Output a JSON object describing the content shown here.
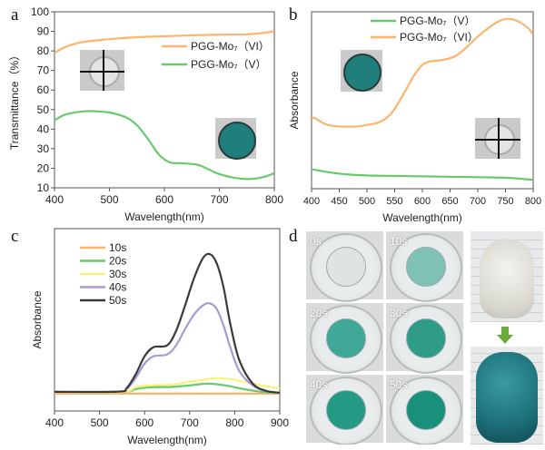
{
  "panels": {
    "a": "a",
    "b": "b",
    "c": "c",
    "d": "d"
  },
  "chart_data": [
    {
      "id": "a",
      "type": "line",
      "xlabel": "Wavelength(nm)",
      "ylabel": "Transmittance（%）",
      "xlim": [
        400,
        800
      ],
      "ylim": [
        10,
        100
      ],
      "xticks": [
        400,
        500,
        600,
        700,
        800
      ],
      "yticks": [
        10,
        20,
        30,
        40,
        50,
        60,
        70,
        80,
        90,
        100
      ],
      "legend": "top-right",
      "series": [
        {
          "name": "PGG-Mo₇（VI）",
          "color": "#fdb46e",
          "x": [
            400,
            420,
            450,
            500,
            550,
            600,
            650,
            700,
            750,
            780,
            800
          ],
          "y": [
            79,
            82,
            84.5,
            86,
            87,
            87.5,
            88,
            88.3,
            88.5,
            89.2,
            90
          ]
        },
        {
          "name": "PGG-Mo₇（V）",
          "color": "#69c96b",
          "x": [
            400,
            420,
            450,
            470,
            500,
            530,
            550,
            570,
            590,
            610,
            630,
            660,
            680,
            700,
            730,
            755,
            780,
            800
          ],
          "y": [
            44.5,
            47.5,
            49,
            49.2,
            48.5,
            46,
            42,
            35,
            27,
            23,
            22.6,
            21.8,
            19.5,
            17,
            15,
            14.5,
            15.5,
            17.5
          ]
        }
      ]
    },
    {
      "id": "b",
      "type": "line",
      "xlabel": "Wavelength(nm)",
      "ylabel": "Absorbance",
      "xlim": [
        400,
        800
      ],
      "ylim": [
        0,
        1
      ],
      "xticks": [
        400,
        450,
        500,
        550,
        600,
        650,
        700,
        750,
        800
      ],
      "legend": "top-center",
      "series": [
        {
          "name": "PGG-Mo₇（V）",
          "color": "#69c96b",
          "x": [
            400,
            450,
            500,
            600,
            700,
            750,
            800
          ],
          "y": [
            0.11,
            0.085,
            0.075,
            0.07,
            0.065,
            0.062,
            0.05
          ]
        },
        {
          "name": "PGG-Mo₇（VI）",
          "color": "#fdb46e",
          "x": [
            400,
            405,
            430,
            470,
            500,
            525,
            545,
            565,
            585,
            600,
            615,
            640,
            660,
            680,
            700,
            720,
            740,
            755,
            770,
            790,
            800
          ],
          "y": [
            0.39,
            0.4,
            0.36,
            0.35,
            0.36,
            0.38,
            0.43,
            0.53,
            0.64,
            0.7,
            0.72,
            0.73,
            0.75,
            0.8,
            0.86,
            0.91,
            0.95,
            0.96,
            0.95,
            0.91,
            0.87
          ]
        }
      ]
    },
    {
      "id": "c",
      "type": "line",
      "xlabel": "Wavelength(nm)",
      "ylabel": "Absorbance",
      "xlim": [
        400,
        900
      ],
      "ylim": [
        0,
        1
      ],
      "xticks": [
        400,
        500,
        600,
        700,
        800,
        900
      ],
      "legend": "top-left",
      "series": [
        {
          "name": "10s",
          "color": "#fdb46e",
          "x": [
            400,
            900
          ],
          "y": [
            0.095,
            0.095
          ]
        },
        {
          "name": "20s",
          "color": "#69c96b",
          "x": [
            400,
            550,
            580,
            610,
            660,
            700,
            740,
            780,
            820,
            860,
            900
          ],
          "y": [
            0.105,
            0.105,
            0.12,
            0.13,
            0.132,
            0.14,
            0.15,
            0.14,
            0.12,
            0.105,
            0.1
          ]
        },
        {
          "name": "30s",
          "color": "#f7f37a",
          "x": [
            400,
            550,
            580,
            610,
            660,
            700,
            740,
            760,
            790,
            830,
            870,
            900
          ],
          "y": [
            0.105,
            0.105,
            0.13,
            0.14,
            0.145,
            0.16,
            0.175,
            0.18,
            0.175,
            0.155,
            0.135,
            0.125
          ]
        },
        {
          "name": "40s",
          "color": "#a899d2",
          "x": [
            400,
            540,
            560,
            580,
            600,
            620,
            650,
            670,
            690,
            710,
            730,
            745,
            760,
            775,
            790,
            810,
            840,
            870,
            900
          ],
          "y": [
            0.105,
            0.106,
            0.12,
            0.18,
            0.26,
            0.3,
            0.31,
            0.36,
            0.45,
            0.53,
            0.58,
            0.59,
            0.56,
            0.47,
            0.35,
            0.22,
            0.14,
            0.11,
            0.1
          ]
        },
        {
          "name": "50s",
          "color": "#3a3a3a",
          "x": [
            400,
            540,
            560,
            580,
            600,
            620,
            650,
            670,
            690,
            710,
            730,
            745,
            760,
            775,
            790,
            810,
            840,
            870,
            900
          ],
          "y": [
            0.105,
            0.106,
            0.125,
            0.2,
            0.3,
            0.35,
            0.36,
            0.44,
            0.58,
            0.73,
            0.84,
            0.86,
            0.81,
            0.68,
            0.48,
            0.28,
            0.15,
            0.11,
            0.1
          ]
        }
      ]
    }
  ],
  "photos": {
    "dishes": [
      {
        "label": "0s",
        "color": "#dfe3e2"
      },
      {
        "label": "10s",
        "color": "#7fc2b4"
      },
      {
        "label": "20s",
        "color": "#3fa896"
      },
      {
        "label": "30s",
        "color": "#2f9c88"
      },
      {
        "label": "40s",
        "color": "#249a84"
      },
      {
        "label": "50s",
        "color": "#18907a"
      }
    ],
    "gel_colors": {
      "clear": "#e6e8e6",
      "green": "#1f7f7a",
      "bear_blue": "#1d6f78"
    },
    "arrow_color": "#6aab3c"
  }
}
